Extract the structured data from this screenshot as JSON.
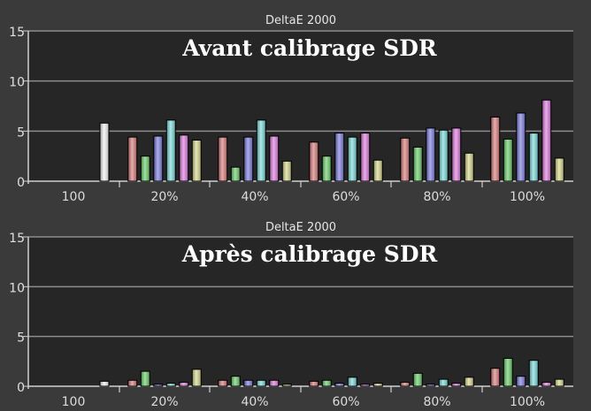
{
  "chart_data": [
    {
      "type": "bar",
      "caption": "DeltaE 2000",
      "title": "Avant calibrage SDR",
      "groups": [
        "100",
        "20%",
        "40%",
        "60%",
        "80%",
        "100%"
      ],
      "yticks": [
        "0",
        "5",
        "10",
        "15"
      ],
      "ylim": [
        0,
        15
      ],
      "series": [
        {
          "color": "#f2f2f2",
          "values": [
            5.8,
            null,
            null,
            null,
            null,
            null
          ]
        },
        {
          "color": "#d98080",
          "values": [
            null,
            4.4,
            4.4,
            3.9,
            4.3,
            6.4
          ]
        },
        {
          "color": "#6fcf6f",
          "values": [
            null,
            2.5,
            1.4,
            2.5,
            3.4,
            4.2
          ]
        },
        {
          "color": "#8080e0",
          "values": [
            null,
            4.5,
            4.4,
            4.8,
            5.3,
            6.8
          ]
        },
        {
          "color": "#80dcdc",
          "values": [
            null,
            6.1,
            6.1,
            4.4,
            5.1,
            4.8
          ]
        },
        {
          "color": "#e080e0",
          "values": [
            null,
            4.6,
            4.5,
            4.8,
            5.3,
            8.1
          ]
        },
        {
          "color": "#d8d890",
          "values": [
            null,
            4.1,
            2.0,
            2.1,
            2.8,
            2.3
          ]
        }
      ]
    },
    {
      "type": "bar",
      "caption": "DeltaE 2000",
      "title": "Après calibrage SDR",
      "groups": [
        "100",
        "20%",
        "40%",
        "60%",
        "80%",
        "100%"
      ],
      "yticks": [
        "0",
        "5",
        "10",
        "15"
      ],
      "ylim": [
        0,
        15
      ],
      "series": [
        {
          "color": "#f2f2f2",
          "values": [
            0.5,
            null,
            null,
            null,
            null,
            null
          ]
        },
        {
          "color": "#d98080",
          "values": [
            null,
            0.6,
            0.6,
            0.5,
            0.4,
            1.8
          ]
        },
        {
          "color": "#6fcf6f",
          "values": [
            null,
            1.5,
            1.0,
            0.6,
            1.3,
            2.8
          ]
        },
        {
          "color": "#8080e0",
          "values": [
            null,
            0.2,
            0.6,
            0.3,
            0.2,
            1.0
          ]
        },
        {
          "color": "#80dcdc",
          "values": [
            null,
            0.3,
            0.6,
            0.9,
            0.7,
            2.6
          ]
        },
        {
          "color": "#e080e0",
          "values": [
            null,
            0.4,
            0.6,
            0.2,
            0.3,
            0.4
          ]
        },
        {
          "color": "#d8d890",
          "values": [
            null,
            1.7,
            0.2,
            0.3,
            0.9,
            0.7
          ]
        }
      ]
    }
  ]
}
